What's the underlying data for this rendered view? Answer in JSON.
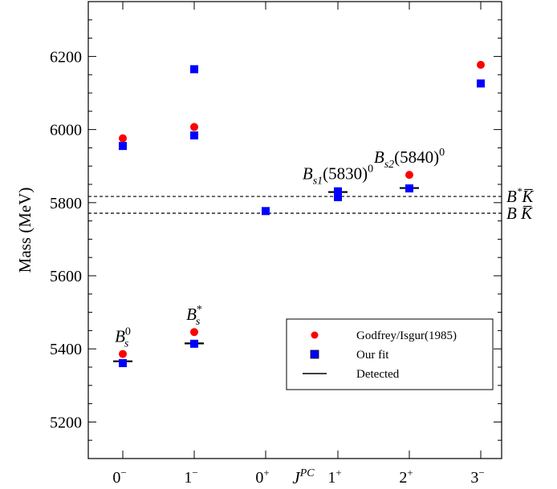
{
  "chart_data": {
    "type": "scatter",
    "xlabel": "J",
    "xlabel_sup": "PC",
    "ylabel": "Mass (MeV)",
    "categories": [
      {
        "base": "0",
        "sup": "−"
      },
      {
        "base": "1",
        "sup": "−"
      },
      {
        "base": "0",
        "sup": "+"
      },
      {
        "base": "1",
        "sup": "+"
      },
      {
        "base": "2",
        "sup": "+"
      },
      {
        "base": "3",
        "sup": "−"
      }
    ],
    "ylim": [
      5100,
      6350
    ],
    "yticks": [
      5200,
      5400,
      5600,
      5800,
      6000,
      6200
    ],
    "series": [
      {
        "name": "Godfrey/Isgur(1985)",
        "marker": "circle",
        "color": "#ff0000",
        "points": [
          {
            "x": 0,
            "y": 5386
          },
          {
            "x": 0,
            "y": 5976
          },
          {
            "x": 1,
            "y": 5446
          },
          {
            "x": 1,
            "y": 6007
          },
          {
            "x": 3,
            "y": 5829
          },
          {
            "x": 4,
            "y": 5876
          },
          {
            "x": 5,
            "y": 6177
          }
        ]
      },
      {
        "name": "Our fit",
        "marker": "square",
        "color": "#0000ff",
        "points": [
          {
            "x": 0,
            "y": 5361
          },
          {
            "x": 0,
            "y": 5955
          },
          {
            "x": 1,
            "y": 5414
          },
          {
            "x": 1,
            "y": 5984
          },
          {
            "x": 1,
            "y": 6165
          },
          {
            "x": 2,
            "y": 5777
          },
          {
            "x": 3,
            "y": 5815
          },
          {
            "x": 3,
            "y": 5831
          },
          {
            "x": 4,
            "y": 5839
          },
          {
            "x": 5,
            "y": 6126
          }
        ]
      },
      {
        "name": "Detected",
        "marker": "dash",
        "color": "#000000",
        "points": [
          {
            "x": 0,
            "y": 5366
          },
          {
            "x": 1,
            "y": 5415
          },
          {
            "x": 3,
            "y": 5829
          },
          {
            "x": 4,
            "y": 5840
          }
        ]
      }
    ],
    "thresholds": [
      {
        "label_base": "B",
        "label_sup": "*",
        "label_rest": "K̅",
        "y": 5817
      },
      {
        "label_base": "B",
        "label_sup": "",
        "label_rest": "K̅",
        "y": 5771
      }
    ],
    "annotations": [
      {
        "x": 0,
        "y": 5386,
        "base": "B",
        "sub": "s",
        "sup": "0",
        "tail": ""
      },
      {
        "x": 1,
        "y": 5446,
        "base": "B",
        "sub": "s",
        "sup": "*",
        "tail": ""
      },
      {
        "x": 3,
        "y": 5831,
        "base": "B",
        "sub": "s1",
        "sup": "0",
        "tail": "(5830)"
      },
      {
        "x": 4,
        "y": 5876,
        "base": "B",
        "sub": "s2",
        "sup": "0",
        "tail": "(5840)"
      }
    ],
    "legend": {
      "position": "bottom-right",
      "entries": [
        "Godfrey/Isgur(1985)",
        "Our fit",
        "Detected"
      ]
    },
    "grid": false
  }
}
